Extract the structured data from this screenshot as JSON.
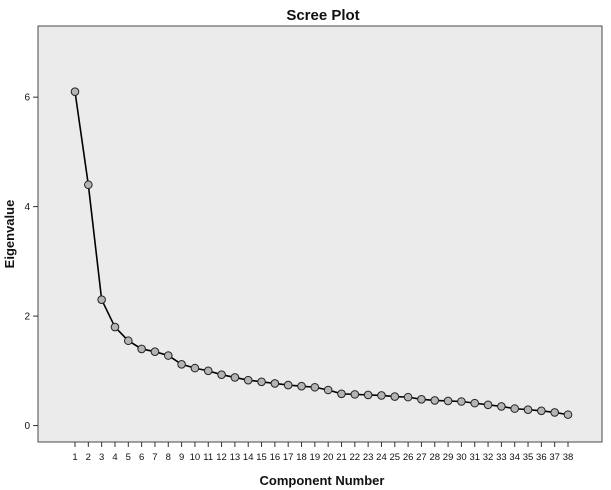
{
  "chart_data": {
    "type": "line",
    "title": "Scree Plot",
    "xlabel": "Component Number",
    "ylabel": "Eigenvalue",
    "x": [
      "1",
      "2",
      "3",
      "4",
      "5",
      "6",
      "7",
      "8",
      "9",
      "10",
      "11",
      "12",
      "13",
      "14",
      "15",
      "16",
      "17",
      "18",
      "19",
      "20",
      "21",
      "22",
      "23",
      "24",
      "25",
      "26",
      "27",
      "28",
      "29",
      "30",
      "31",
      "32",
      "33",
      "34",
      "35",
      "36",
      "37",
      "38"
    ],
    "xtick_labels": [
      "1",
      "2",
      "3",
      "4",
      "5",
      "6",
      "7",
      "8",
      "9",
      "10",
      "11",
      "12",
      "13",
      "14",
      "15",
      "16",
      "17",
      "18",
      "19",
      "20",
      "21",
      "22",
      "23",
      "24",
      "25",
      "26",
      "27",
      "28",
      "29",
      "30",
      "31",
      "32",
      "33",
      "34",
      "35",
      "36",
      "37",
      "38"
    ],
    "y": [
      6.1,
      4.4,
      2.3,
      1.8,
      1.55,
      1.4,
      1.35,
      1.28,
      1.12,
      1.05,
      1.0,
      0.93,
      0.88,
      0.83,
      0.8,
      0.77,
      0.74,
      0.72,
      0.7,
      0.65,
      0.58,
      0.57,
      0.56,
      0.55,
      0.53,
      0.52,
      0.48,
      0.46,
      0.45,
      0.44,
      0.41,
      0.38,
      0.35,
      0.31,
      0.29,
      0.27,
      0.24,
      0.2
    ],
    "yticks": [
      0,
      2,
      4,
      6
    ],
    "ylim": [
      -0.3,
      7.3
    ],
    "grid": false,
    "colors": {
      "plot_background": "#ebebeb",
      "line": "#000000",
      "marker_fill": "#b4b4b4",
      "marker_stroke": "#222222"
    }
  }
}
